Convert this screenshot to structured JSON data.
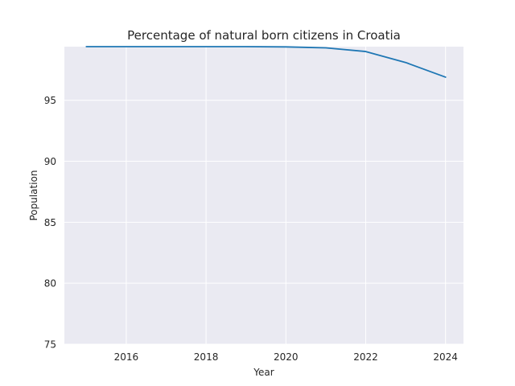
{
  "chart_data": {
    "type": "line",
    "title": "Percentage of natural born citizens in Croatia",
    "xlabel": "Year",
    "ylabel": "Population",
    "xlim": [
      2014.45,
      2024.45
    ],
    "ylim": [
      75,
      99.4
    ],
    "xticks": [
      2016,
      2018,
      2020,
      2022,
      2024
    ],
    "yticks": [
      75,
      80,
      85,
      90,
      95
    ],
    "grid": true,
    "series": [
      {
        "x": [
          2015,
          2016,
          2017,
          2018,
          2019,
          2020,
          2021,
          2022,
          2023,
          2024
        ],
        "values": [
          99.4,
          99.4,
          99.4,
          99.4,
          99.4,
          99.38,
          99.3,
          99.0,
          98.1,
          96.9
        ],
        "color": "#1f77b4"
      }
    ]
  }
}
